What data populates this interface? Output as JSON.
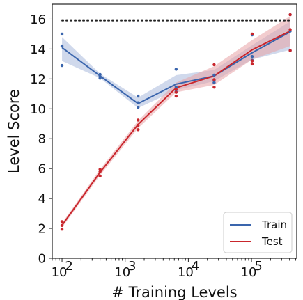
{
  "chart_data": {
    "type": "line",
    "xscale": "log",
    "xlabel": "# Training Levels",
    "ylabel": "Level Score",
    "xlim": [
      70,
      520000
    ],
    "ylim": [
      0,
      17
    ],
    "xticks": [
      {
        "value": 100,
        "base": "10",
        "exp": "2"
      },
      {
        "value": 1000,
        "base": "10",
        "exp": "3"
      },
      {
        "value": 10000,
        "base": "10",
        "exp": "4"
      },
      {
        "value": 100000,
        "base": "10",
        "exp": "5"
      }
    ],
    "yticks": [
      0,
      2,
      4,
      6,
      8,
      10,
      12,
      14,
      16
    ],
    "reference_line": {
      "y": 15.9,
      "style": "dotted"
    },
    "legend_position": "bottom-right",
    "x": [
      100,
      400,
      1600,
      6400,
      25600,
      102400,
      409600
    ],
    "series": [
      {
        "name": "Train",
        "color": "#3a65ad",
        "band_color": "#aab9dd",
        "mean": [
          14.1,
          12.2,
          10.35,
          11.65,
          12.2,
          13.75,
          15.15
        ],
        "band_low": [
          13.2,
          12.05,
          10.05,
          11.25,
          11.85,
          13.3,
          13.95
        ],
        "band_high": [
          14.8,
          12.35,
          10.75,
          12.25,
          12.6,
          14.25,
          15.85
        ],
        "points": [
          [
            15.0,
            14.2,
            12.9
          ],
          [
            12.3,
            12.15,
            12.05
          ],
          [
            10.85,
            10.4,
            10.1
          ],
          [
            12.65,
            11.45,
            11.15
          ],
          [
            12.25,
            11.9,
            11.75
          ],
          [
            14.95,
            13.5,
            13.25
          ],
          [
            16.3,
            15.2,
            13.9
          ]
        ]
      },
      {
        "name": "Test",
        "color": "#c9262c",
        "band_color": "#e7a2a5",
        "mean": [
          2.2,
          5.75,
          8.95,
          11.4,
          12.2,
          13.95,
          15.2
        ],
        "band_low": [
          2.05,
          5.55,
          8.7,
          11.1,
          11.6,
          13.3,
          14.2
        ],
        "band_high": [
          2.35,
          5.95,
          9.2,
          11.75,
          12.85,
          14.6,
          16.2
        ],
        "points": [
          [
            2.45,
            2.2,
            1.95
          ],
          [
            5.95,
            5.8,
            5.5
          ],
          [
            9.25,
            8.9,
            8.6
          ],
          [
            11.3,
            11.1,
            10.85
          ],
          [
            12.95,
            11.95,
            11.45
          ],
          [
            15.0,
            13.2,
            13.0
          ],
          [
            16.3,
            15.3,
            13.9
          ]
        ]
      }
    ]
  }
}
